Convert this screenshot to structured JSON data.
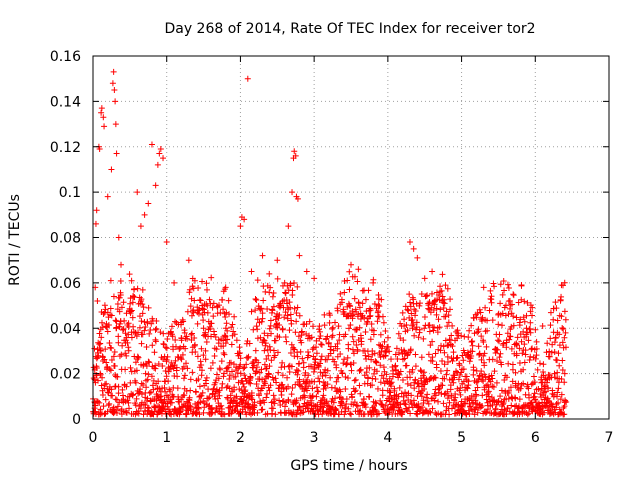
{
  "chart_data": {
    "type": "scatter",
    "title": "Day 268 of 2014, Rate Of TEC Index for receiver tor2",
    "xlabel": "GPS time / hours",
    "ylabel": "ROTI / TECUs",
    "xlim": [
      0,
      7
    ],
    "ylim": [
      0,
      0.16
    ],
    "xticks": [
      0,
      1,
      2,
      3,
      4,
      5,
      6,
      7
    ],
    "yticks": [
      0,
      0.02,
      0.04,
      0.06,
      0.08,
      0.1,
      0.12,
      0.14,
      0.16
    ],
    "xtick_labels": [
      "0",
      "1",
      "2",
      "3",
      "4",
      "5",
      "6",
      "7"
    ],
    "ytick_labels": [
      "0",
      "0.02",
      "0.04",
      "0.06",
      "0.08",
      "0.1",
      "0.12",
      "0.14",
      "0.16"
    ],
    "grid": true,
    "marker": "+",
    "color": "#ff0000",
    "series": [
      {
        "name": "ROTI",
        "points": [
          [
            0.02,
            0.031
          ],
          [
            0.03,
            0.058
          ],
          [
            0.04,
            0.086
          ],
          [
            0.05,
            0.092
          ],
          [
            0.06,
            0.052
          ],
          [
            0.08,
            0.12
          ],
          [
            0.09,
            0.119
          ],
          [
            0.11,
            0.135
          ],
          [
            0.12,
            0.137
          ],
          [
            0.14,
            0.133
          ],
          [
            0.15,
            0.129
          ],
          [
            0.2,
            0.098
          ],
          [
            0.25,
            0.11
          ],
          [
            0.27,
            0.148
          ],
          [
            0.28,
            0.153
          ],
          [
            0.29,
            0.145
          ],
          [
            0.3,
            0.14
          ],
          [
            0.31,
            0.13
          ],
          [
            0.32,
            0.117
          ],
          [
            0.35,
            0.08
          ],
          [
            0.38,
            0.068
          ],
          [
            0.5,
            0.048
          ],
          [
            0.6,
            0.1
          ],
          [
            0.65,
            0.085
          ],
          [
            0.7,
            0.09
          ],
          [
            0.75,
            0.095
          ],
          [
            0.8,
            0.121
          ],
          [
            0.85,
            0.103
          ],
          [
            0.88,
            0.112
          ],
          [
            0.9,
            0.117
          ],
          [
            0.92,
            0.119
          ],
          [
            0.95,
            0.115
          ],
          [
            1.0,
            0.078
          ],
          [
            1.1,
            0.06
          ],
          [
            1.3,
            0.07
          ],
          [
            1.5,
            0.04
          ],
          [
            1.8,
            0.058
          ],
          [
            2.0,
            0.085
          ],
          [
            2.02,
            0.089
          ],
          [
            2.05,
            0.088
          ],
          [
            2.1,
            0.15
          ],
          [
            2.15,
            0.065
          ],
          [
            2.3,
            0.072
          ],
          [
            2.5,
            0.07
          ],
          [
            2.6,
            0.06
          ],
          [
            2.65,
            0.085
          ],
          [
            2.7,
            0.1
          ],
          [
            2.72,
            0.115
          ],
          [
            2.73,
            0.118
          ],
          [
            2.75,
            0.116
          ],
          [
            2.76,
            0.098
          ],
          [
            2.78,
            0.097
          ],
          [
            2.8,
            0.072
          ],
          [
            2.9,
            0.065
          ],
          [
            3.0,
            0.062
          ],
          [
            3.5,
            0.068
          ],
          [
            3.6,
            0.066
          ],
          [
            3.8,
            0.06
          ],
          [
            4.3,
            0.078
          ],
          [
            4.35,
            0.075
          ],
          [
            4.4,
            0.071
          ],
          [
            4.5,
            0.062
          ],
          [
            4.6,
            0.065
          ],
          [
            5.3,
            0.058
          ],
          [
            5.7,
            0.055
          ],
          [
            6.1,
            0.041
          ],
          [
            6.3,
            0.038
          ],
          [
            6.4,
            0.02
          ]
        ]
      }
    ],
    "background_density": {
      "x_range": [
        0,
        6.42
      ],
      "typical_range": [
        0.002,
        0.045
      ],
      "description_values": [
        0.01,
        0.02,
        0.03
      ]
    }
  }
}
